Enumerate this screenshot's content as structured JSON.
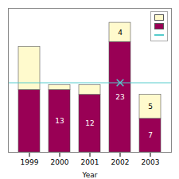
{
  "chart_data": {
    "type": "bar",
    "stacked": true,
    "categories": [
      "1999",
      "2000",
      "2001",
      "2002",
      "2003"
    ],
    "series": [
      {
        "color": "#990055",
        "values": [
          13,
          13,
          12,
          23,
          7
        ],
        "value_labels": [
          null,
          "13",
          "12",
          "23",
          "7"
        ]
      },
      {
        "color": "#FFFACD",
        "values": [
          9,
          1,
          2,
          4,
          5
        ],
        "value_labels": [
          null,
          null,
          null,
          "4",
          "5"
        ]
      }
    ],
    "xlabel": "Year",
    "ylim": [
      0,
      30
    ],
    "tick_labels": "x",
    "data_labels": true,
    "legend": "upper right",
    "hline": {
      "value": 14.5,
      "color": "#55CCCC",
      "marker": "x",
      "marker_at": "2002"
    }
  }
}
